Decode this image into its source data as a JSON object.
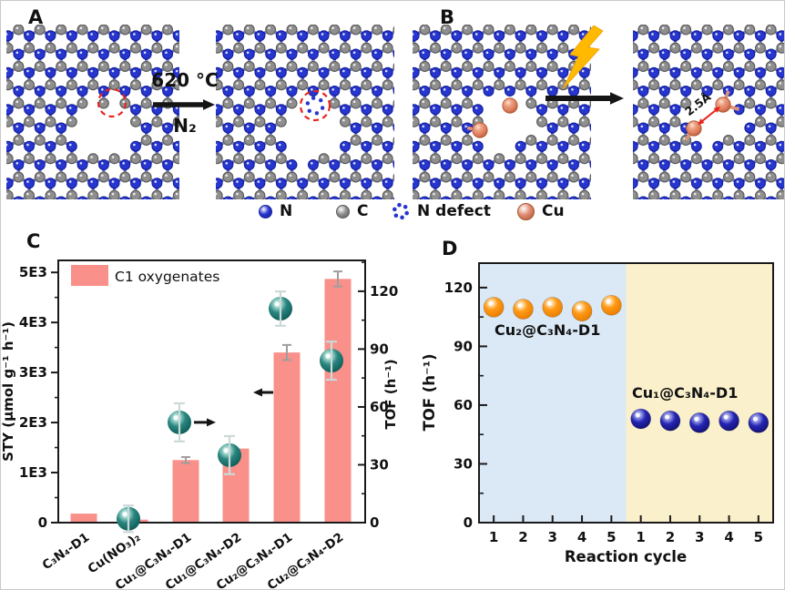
{
  "figure": {
    "background": "#ffffff",
    "border": "#c9c9c9"
  },
  "palette": {
    "n_color": "#2736cf",
    "n_dark": "#15209a",
    "n_bond": "#2d3cd4",
    "c_color": "#8f8f8f",
    "c_dark": "#585858",
    "c_bond": "#9b9b9b",
    "cu_color": "#e08a70",
    "cu_dark": "#a8542f",
    "cu_bond": "#dd9478",
    "bar_color": "#f9908a",
    "bar_error_gray": "#9e9e9e",
    "point_error_gray": "#ccd9d8",
    "orange_sphere": "#ff8d00",
    "blue_sphere": "#1c1cb0",
    "bg_blue": "#dbe8f6",
    "bg_cream": "#faf0cc",
    "defect_red": "#e8241c",
    "lightning": "#ffb900",
    "arrow_black": "#151515",
    "axis_black": "#1a1a1a"
  },
  "panel_a": {
    "label": "A",
    "condition_top": "620 °C",
    "condition_bottom": "N₂"
  },
  "panel_b": {
    "label": "B",
    "distance_label": "2.5Å"
  },
  "atom_legend": [
    {
      "label": "N",
      "color": "#2736cf",
      "dark": "#15209a",
      "type": "sphere"
    },
    {
      "label": "C",
      "color": "#8f8f8f",
      "dark": "#585858",
      "type": "sphere"
    },
    {
      "label": "N defect",
      "color": "#2736cf",
      "dark": "#15209a",
      "type": "dotted-circle"
    },
    {
      "label": "Cu",
      "color": "#e08a70",
      "dark": "#a8542f",
      "type": "sphere"
    }
  ],
  "chart_data": [
    {
      "id": "panel-c",
      "panel_label": "C",
      "type": "bar",
      "legend": "C1 oxygenates",
      "categories": [
        "C₃N₄-D1",
        "Cu(NO₃)₂",
        "Cu₁@C₃N₄-D1",
        "Cu₁@C₃N₄-D2",
        "Cu₂@C₃N₄-D1",
        "Cu₂@C₃N₄-D2"
      ],
      "left_axis": {
        "label": "STY (μmol g⁻¹ h⁻¹)",
        "tick_labels": [
          "0",
          "1E3",
          "2E3",
          "3E3",
          "4E3",
          "5E3"
        ],
        "tick_values": [
          0,
          1000,
          2000,
          3000,
          4000,
          5000
        ],
        "max": 5240
      },
      "right_axis": {
        "label": "TOF (h⁻¹)",
        "tick_labels": [
          "0",
          "30",
          "60",
          "90",
          "120"
        ],
        "tick_values": [
          0,
          30,
          60,
          90,
          120
        ],
        "max": 136
      },
      "series": [
        {
          "name": "STY C1 oxygenates",
          "plot": "bar",
          "axis": "left",
          "values": [
            180,
            60,
            1250,
            1480,
            3400,
            4870
          ],
          "errors": [
            0,
            0,
            60,
            0,
            150,
            150
          ]
        },
        {
          "name": "TOF",
          "plot": "sphere",
          "axis": "right",
          "values": [
            null,
            2,
            52,
            35,
            111,
            84
          ],
          "errors": [
            null,
            5,
            8,
            8,
            7,
            8
          ]
        }
      ]
    },
    {
      "id": "panel-d",
      "panel_label": "D",
      "type": "scatter",
      "xlabel": "Reaction cycle",
      "ylabel": "TOF (h⁻¹)",
      "x_tick_labels": [
        "1",
        "2",
        "3",
        "4",
        "5",
        "1",
        "2",
        "3",
        "4",
        "5"
      ],
      "y_axis": {
        "tick_labels": [
          "0",
          "30",
          "60",
          "90",
          "120"
        ],
        "tick_values": [
          0,
          30,
          60,
          90,
          120
        ],
        "max": 132.5
      },
      "series": [
        {
          "name": "Cu₂@C₃N₄-D1",
          "color": "#ff8d00",
          "slots": [
            1,
            2,
            3,
            4,
            5
          ],
          "values": [
            110,
            109,
            110,
            108,
            111
          ]
        },
        {
          "name": "Cu₁@C₃N₄-D1",
          "color": "#1c1cb0",
          "slots": [
            6,
            7,
            8,
            9,
            10
          ],
          "values": [
            53,
            52,
            51,
            52,
            51
          ]
        }
      ],
      "regions": [
        {
          "from_slot": 0.5,
          "to_slot": 5.5,
          "color": "#dbe8f6"
        },
        {
          "from_slot": 5.5,
          "to_slot": 10.5,
          "color": "#faf0cc"
        }
      ]
    }
  ]
}
